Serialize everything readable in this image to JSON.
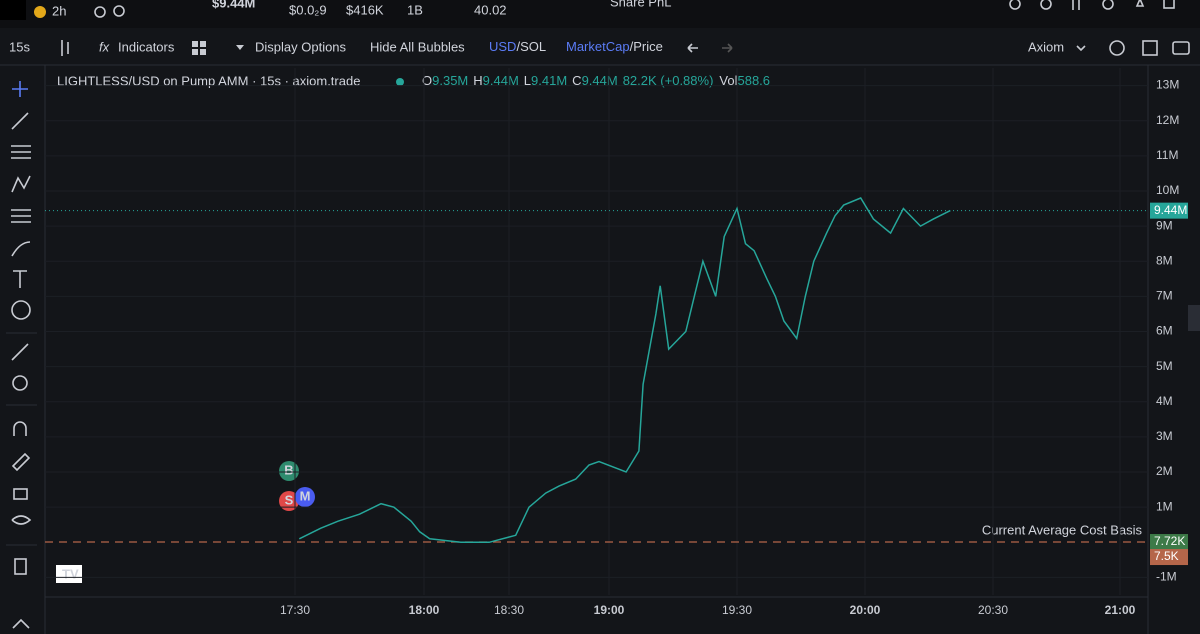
{
  "top_bar": {
    "age": "2h",
    "market_cap": "$9.44M",
    "price": "$0.0₂9",
    "liquidity": "$416K",
    "supply": "1B",
    "sol_amount": "40.02",
    "share": "Share PnL"
  },
  "toolbar": {
    "interval": "15s",
    "indicators": "Indicators",
    "display_options": "Display Options",
    "hide_bubbles": "Hide All Bubbles",
    "usd": "USD",
    "sol": "/SOL",
    "market_cap": "MarketCap",
    "price": "/Price",
    "source": "Axiom"
  },
  "legend": {
    "title": "LIGHTLESS/USD on Pump AMM · 15s · axiom.trade",
    "o_label": "O",
    "o": "9.35M",
    "h_label": "H",
    "h": "9.44M",
    "l_label": "L",
    "l": "9.41M",
    "c_label": "C",
    "c": "9.44M",
    "change": "82.2K (+0.88%)",
    "vol_label": "Vol",
    "vol": "588.6"
  },
  "markers": {
    "buy": "B",
    "sell": "S",
    "migration": "M"
  },
  "basis_label": "Current Average Cost Basis",
  "chart_data": {
    "type": "line",
    "color": "#26a69a",
    "x": [
      "17:31",
      "17:36",
      "17:40",
      "17:45",
      "17:50",
      "17:53",
      "17:57",
      "17:59",
      "18:02",
      "18:13",
      "18:23",
      "18:32",
      "18:36",
      "18:41",
      "18:45",
      "18:50",
      "18:54",
      "18:57",
      "19:04",
      "19:07",
      "19:08",
      "19:11",
      "19:12",
      "19:14",
      "19:18",
      "19:20",
      "19:22",
      "19:25",
      "19:27",
      "19:30",
      "19:32",
      "19:34",
      "19:37",
      "19:39",
      "19:41",
      "19:44",
      "19:46",
      "19:48",
      "19:51",
      "19:53",
      "19:55",
      "19:59",
      "20:02",
      "20:06",
      "20:09",
      "20:13",
      "20:16",
      "20:20"
    ],
    "values": [
      0.1,
      0.4,
      0.6,
      0.8,
      1.1,
      1.0,
      0.6,
      0.3,
      0.1,
      0.0,
      0.0,
      0.2,
      1.0,
      1.4,
      1.6,
      1.8,
      2.2,
      2.3,
      2.0,
      2.6,
      4.5,
      6.5,
      7.3,
      5.5,
      6.0,
      7.0,
      8.0,
      7.0,
      8.7,
      9.5,
      8.5,
      8.3,
      7.5,
      7.0,
      6.3,
      5.8,
      7.0,
      8.0,
      8.8,
      9.3,
      9.6,
      9.8,
      9.2,
      8.8,
      9.5,
      9.0,
      9.2,
      9.44
    ],
    "ylim": [
      -1.5,
      13.5
    ],
    "yticks": [
      {
        "value": 13,
        "label": "13M"
      },
      {
        "value": 12,
        "label": "12M"
      },
      {
        "value": 11,
        "label": "11M"
      },
      {
        "value": 10,
        "label": "10M"
      },
      {
        "value": 9,
        "label": "9M"
      },
      {
        "value": 8,
        "label": "8M"
      },
      {
        "value": 7,
        "label": "7M"
      },
      {
        "value": 6,
        "label": "6M"
      },
      {
        "value": 5,
        "label": "5M"
      },
      {
        "value": 4,
        "label": "4M"
      },
      {
        "value": 3,
        "label": "3M"
      },
      {
        "value": 2,
        "label": "2M"
      },
      {
        "value": 1,
        "label": "1M"
      },
      {
        "value": -1,
        "label": "-1M"
      }
    ],
    "xticks": [
      "17:30",
      "18:00",
      "18:30",
      "19:00",
      "19:30",
      "20:00",
      "20:30",
      "21:00"
    ],
    "price_lines": [
      {
        "value": 9.44,
        "label": "9.44M",
        "color": "#26a69a"
      },
      {
        "value": 0.00772,
        "label": "7.72K",
        "color": "#3d7a48"
      },
      {
        "value": 0.0075,
        "label": "7.5K",
        "color": "#b5664a"
      }
    ]
  }
}
